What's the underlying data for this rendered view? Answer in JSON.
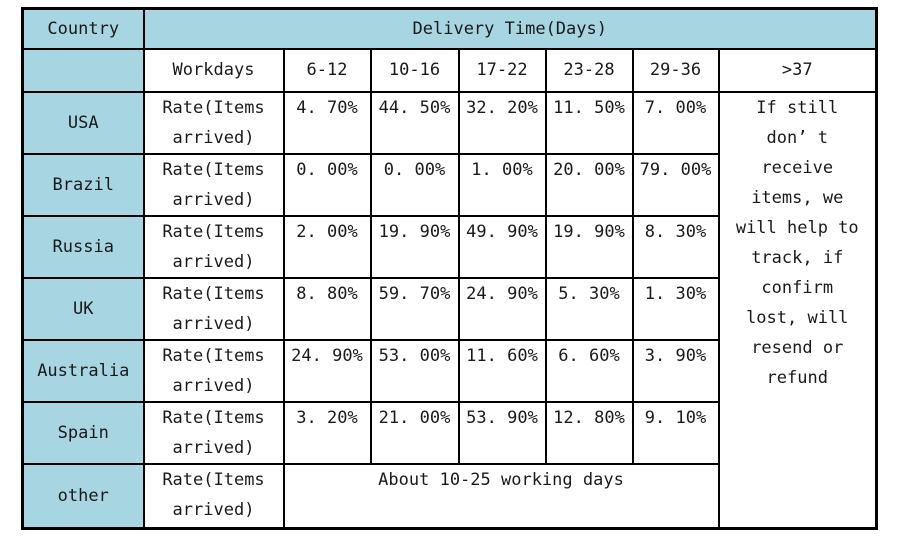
{
  "colors": {
    "header_bg": "#a7d5e2",
    "border": "#000000",
    "text": "#1a1a1a"
  },
  "table": {
    "corner_label": "Country",
    "title": "Delivery Time(Days)",
    "workdays_label": "Workdays",
    "ranges": [
      "6-12",
      "10-16",
      "17-22",
      "23-28",
      "29-36",
      ">37"
    ],
    "rate_label": "Rate(Items\narrived)",
    "rows": [
      {
        "country": "USA",
        "rates": [
          "4. 70%",
          "44. 50%",
          "32. 20%",
          "11. 50%",
          "7. 00%"
        ]
      },
      {
        "country": "Brazil",
        "rates": [
          "0. 00%",
          "0. 00%",
          "1. 00%",
          "20. 00%",
          "79. 00%"
        ]
      },
      {
        "country": "Russia",
        "rates": [
          "2. 00%",
          "19. 90%",
          "49. 90%",
          "19. 90%",
          "8. 30%"
        ]
      },
      {
        "country": "UK",
        "rates": [
          "8. 80%",
          "59. 70%",
          "24. 90%",
          "5. 30%",
          "1. 30%"
        ]
      },
      {
        "country": "Australia",
        "rates": [
          "24. 90%",
          "53. 00%",
          "11. 60%",
          "6. 60%",
          "3. 90%"
        ]
      },
      {
        "country": "Spain",
        "rates": [
          "3. 20%",
          "21. 00%",
          "53. 90%",
          "12. 80%",
          "9. 10%"
        ]
      }
    ],
    "other_row": {
      "country": "other",
      "note": "About 10-25 working days"
    },
    "late_note": "If still\ndon’ t\nreceive\nitems, we\nwill help to\ntrack, if\nconfirm\nlost, will\nresend or\nrefund"
  }
}
